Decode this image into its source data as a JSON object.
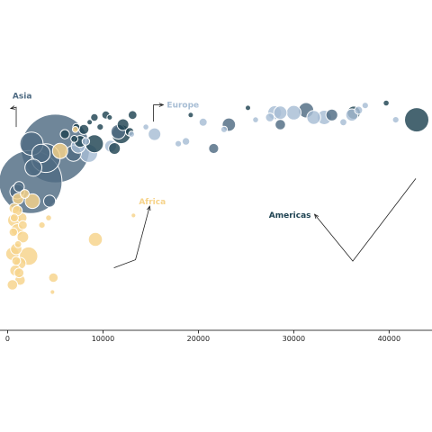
{
  "chart_data": {
    "type": "scatter",
    "title": "",
    "xlabel": "",
    "ylabel": "",
    "xlim": [
      -800,
      44500
    ],
    "ylim": [
      30,
      84
    ],
    "grid": false,
    "x_ticks": [
      0,
      10000,
      20000,
      30000,
      40000
    ],
    "x_tick_labels": [
      "0",
      "10000",
      "20000",
      "30000",
      "40000"
    ],
    "colors": {
      "Asia": "#4f6b83",
      "Europe": "#a7bdd4",
      "Africa": "#f6d38a",
      "Americas": "#1f4352"
    },
    "annotations": [
      {
        "group": "Asia",
        "text": "Asia",
        "from": [
          900,
          72.5
        ],
        "to": [
          2400,
          79
        ]
      },
      {
        "group": "Europe",
        "text": "Europe",
        "from": [
          15300,
          72.5
        ],
        "to": [
          16700,
          77.5
        ]
      },
      {
        "group": "Africa",
        "text": "Africa",
        "from": [
          10200,
          44
        ],
        "to": [
          14900,
          55
        ]
      },
      {
        "group": "Americas",
        "text": "Americas",
        "from": [
          42800,
          67
        ],
        "to": [
          32000,
          55
        ]
      }
    ],
    "series": [
      {
        "name": "Asia",
        "points": [
          {
            "x": 5000,
            "y": 68,
            "size": 1320
          },
          {
            "x": 2400,
            "y": 61,
            "size": 1110
          },
          {
            "x": 4000,
            "y": 66,
            "size": 230
          },
          {
            "x": 3500,
            "y": 67,
            "size": 95
          },
          {
            "x": 2700,
            "y": 64,
            "size": 80
          },
          {
            "x": 2500,
            "y": 69,
            "size": 150
          },
          {
            "x": 1000,
            "y": 59,
            "size": 60
          },
          {
            "x": 1200,
            "y": 60,
            "size": 30
          },
          {
            "x": 4400,
            "y": 57,
            "size": 40
          },
          {
            "x": 31300,
            "y": 76,
            "size": 65
          },
          {
            "x": 23200,
            "y": 73,
            "size": 49
          },
          {
            "x": 21600,
            "y": 68,
            "size": 28
          },
          {
            "x": 34000,
            "y": 75,
            "size": 40
          },
          {
            "x": 28600,
            "y": 73,
            "size": 30
          },
          {
            "x": 11600,
            "y": 71.5,
            "size": 60
          },
          {
            "x": 6900,
            "y": 67,
            "size": 70
          }
        ]
      },
      {
        "name": "Europe",
        "points": [
          {
            "x": 32100,
            "y": 74.5,
            "size": 54
          },
          {
            "x": 30000,
            "y": 75.5,
            "size": 60
          },
          {
            "x": 33200,
            "y": 74.5,
            "size": 58
          },
          {
            "x": 28600,
            "y": 75.5,
            "size": 50
          },
          {
            "x": 28000,
            "y": 75.5,
            "size": 54
          },
          {
            "x": 36100,
            "y": 75,
            "size": 42
          },
          {
            "x": 8500,
            "y": 67,
            "size": 90
          },
          {
            "x": 10800,
            "y": 68.5,
            "size": 40
          },
          {
            "x": 15400,
            "y": 71,
            "size": 45
          },
          {
            "x": 7400,
            "y": 68.5,
            "size": 55
          },
          {
            "x": 27500,
            "y": 74.5,
            "size": 22
          },
          {
            "x": 20500,
            "y": 73.5,
            "size": 18
          },
          {
            "x": 18700,
            "y": 69.5,
            "size": 16
          },
          {
            "x": 17900,
            "y": 69,
            "size": 12
          },
          {
            "x": 36800,
            "y": 76,
            "size": 18
          },
          {
            "x": 35200,
            "y": 73.5,
            "size": 14
          },
          {
            "x": 40700,
            "y": 74,
            "size": 12
          },
          {
            "x": 26000,
            "y": 74,
            "size": 10
          },
          {
            "x": 22700,
            "y": 72,
            "size": 12
          },
          {
            "x": 37500,
            "y": 77,
            "size": 12
          },
          {
            "x": 8200,
            "y": 69.5,
            "size": 16
          },
          {
            "x": 13000,
            "y": 71,
            "size": 10
          },
          {
            "x": 14500,
            "y": 72.5,
            "size": 10
          }
        ]
      },
      {
        "name": "Africa",
        "points": [
          {
            "x": 2200,
            "y": 45.5,
            "size": 95
          },
          {
            "x": 9200,
            "y": 49,
            "size": 55
          },
          {
            "x": 5500,
            "y": 67.5,
            "size": 65
          },
          {
            "x": 2600,
            "y": 57,
            "size": 60
          },
          {
            "x": 700,
            "y": 53,
            "size": 50
          },
          {
            "x": 1000,
            "y": 51,
            "size": 42
          },
          {
            "x": 500,
            "y": 46,
            "size": 50
          },
          {
            "x": 1300,
            "y": 44,
            "size": 40
          },
          {
            "x": 1600,
            "y": 49.5,
            "size": 38
          },
          {
            "x": 900,
            "y": 47,
            "size": 36
          },
          {
            "x": 700,
            "y": 55.5,
            "size": 30
          },
          {
            "x": 1500,
            "y": 53.5,
            "size": 28
          },
          {
            "x": 1100,
            "y": 57.5,
            "size": 34
          },
          {
            "x": 800,
            "y": 42.5,
            "size": 34
          },
          {
            "x": 1300,
            "y": 40.5,
            "size": 30
          },
          {
            "x": 1200,
            "y": 42,
            "size": 26
          },
          {
            "x": 500,
            "y": 39.5,
            "size": 30
          },
          {
            "x": 1000,
            "y": 55,
            "size": 28
          },
          {
            "x": 4800,
            "y": 41,
            "size": 25
          },
          {
            "x": 1600,
            "y": 52,
            "size": 22
          },
          {
            "x": 600,
            "y": 50.5,
            "size": 20
          },
          {
            "x": 900,
            "y": 44.5,
            "size": 22
          },
          {
            "x": 1800,
            "y": 58.5,
            "size": 22
          },
          {
            "x": 700,
            "y": 53.5,
            "size": 18
          },
          {
            "x": 3600,
            "y": 52,
            "size": 12
          },
          {
            "x": 4300,
            "y": 53.5,
            "size": 10
          },
          {
            "x": 13200,
            "y": 54,
            "size": 6
          },
          {
            "x": 4700,
            "y": 38,
            "size": 6
          },
          {
            "x": 1100,
            "y": 48,
            "size": 14
          },
          {
            "x": 7100,
            "y": 72,
            "size": 10
          }
        ]
      },
      {
        "name": "Americas",
        "points": [
          {
            "x": 42900,
            "y": 74,
            "size": 165
          },
          {
            "x": 11900,
            "y": 71,
            "size": 100
          },
          {
            "x": 9100,
            "y": 69,
            "size": 90
          },
          {
            "x": 36300,
            "y": 75.5,
            "size": 48
          },
          {
            "x": 12100,
            "y": 73,
            "size": 38
          },
          {
            "x": 11200,
            "y": 68,
            "size": 38
          },
          {
            "x": 7600,
            "y": 69.5,
            "size": 38
          },
          {
            "x": 8000,
            "y": 72,
            "size": 28
          },
          {
            "x": 6000,
            "y": 71,
            "size": 24
          },
          {
            "x": 13100,
            "y": 75,
            "size": 22
          },
          {
            "x": 12800,
            "y": 71.5,
            "size": 20
          },
          {
            "x": 10300,
            "y": 75,
            "size": 18
          },
          {
            "x": 9100,
            "y": 74.5,
            "size": 16
          },
          {
            "x": 7000,
            "y": 70,
            "size": 14
          },
          {
            "x": 7200,
            "y": 72.5,
            "size": 14
          },
          {
            "x": 9700,
            "y": 72.5,
            "size": 12
          },
          {
            "x": 39700,
            "y": 77.5,
            "size": 10
          },
          {
            "x": 19200,
            "y": 75,
            "size": 8
          },
          {
            "x": 25200,
            "y": 76.5,
            "size": 8
          },
          {
            "x": 10700,
            "y": 74.5,
            "size": 8
          },
          {
            "x": 8600,
            "y": 73.5,
            "size": 8
          }
        ]
      }
    ]
  }
}
